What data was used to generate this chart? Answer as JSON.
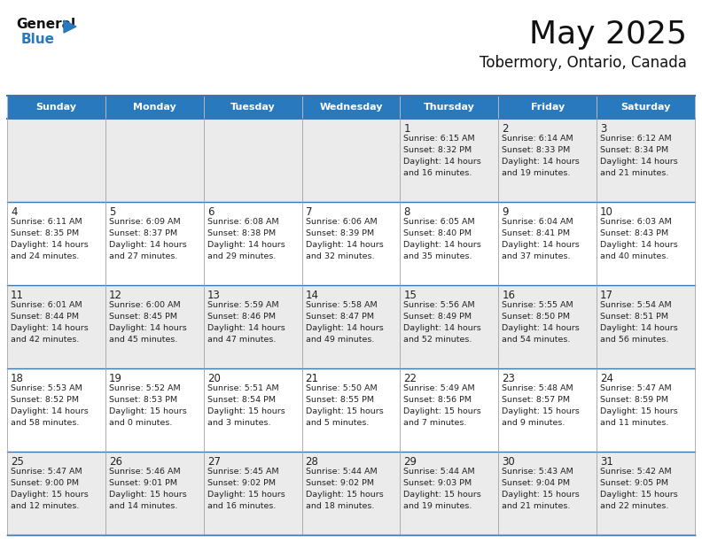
{
  "title": "May 2025",
  "subtitle": "Tobermory, Ontario, Canada",
  "header_color": "#2879BD",
  "header_text_color": "#FFFFFF",
  "text_color": "#222222",
  "border_color": "#4472C4",
  "cell_bg_white": "#FFFFFF",
  "cell_bg_gray": "#EBEBEB",
  "days_of_week": [
    "Sunday",
    "Monday",
    "Tuesday",
    "Wednesday",
    "Thursday",
    "Friday",
    "Saturday"
  ],
  "weeks": [
    [
      {
        "day": "",
        "lines": []
      },
      {
        "day": "",
        "lines": []
      },
      {
        "day": "",
        "lines": []
      },
      {
        "day": "",
        "lines": []
      },
      {
        "day": "1",
        "lines": [
          "Sunrise: 6:15 AM",
          "Sunset: 8:32 PM",
          "Daylight: 14 hours",
          "and 16 minutes."
        ]
      },
      {
        "day": "2",
        "lines": [
          "Sunrise: 6:14 AM",
          "Sunset: 8:33 PM",
          "Daylight: 14 hours",
          "and 19 minutes."
        ]
      },
      {
        "day": "3",
        "lines": [
          "Sunrise: 6:12 AM",
          "Sunset: 8:34 PM",
          "Daylight: 14 hours",
          "and 21 minutes."
        ]
      }
    ],
    [
      {
        "day": "4",
        "lines": [
          "Sunrise: 6:11 AM",
          "Sunset: 8:35 PM",
          "Daylight: 14 hours",
          "and 24 minutes."
        ]
      },
      {
        "day": "5",
        "lines": [
          "Sunrise: 6:09 AM",
          "Sunset: 8:37 PM",
          "Daylight: 14 hours",
          "and 27 minutes."
        ]
      },
      {
        "day": "6",
        "lines": [
          "Sunrise: 6:08 AM",
          "Sunset: 8:38 PM",
          "Daylight: 14 hours",
          "and 29 minutes."
        ]
      },
      {
        "day": "7",
        "lines": [
          "Sunrise: 6:06 AM",
          "Sunset: 8:39 PM",
          "Daylight: 14 hours",
          "and 32 minutes."
        ]
      },
      {
        "day": "8",
        "lines": [
          "Sunrise: 6:05 AM",
          "Sunset: 8:40 PM",
          "Daylight: 14 hours",
          "and 35 minutes."
        ]
      },
      {
        "day": "9",
        "lines": [
          "Sunrise: 6:04 AM",
          "Sunset: 8:41 PM",
          "Daylight: 14 hours",
          "and 37 minutes."
        ]
      },
      {
        "day": "10",
        "lines": [
          "Sunrise: 6:03 AM",
          "Sunset: 8:43 PM",
          "Daylight: 14 hours",
          "and 40 minutes."
        ]
      }
    ],
    [
      {
        "day": "11",
        "lines": [
          "Sunrise: 6:01 AM",
          "Sunset: 8:44 PM",
          "Daylight: 14 hours",
          "and 42 minutes."
        ]
      },
      {
        "day": "12",
        "lines": [
          "Sunrise: 6:00 AM",
          "Sunset: 8:45 PM",
          "Daylight: 14 hours",
          "and 45 minutes."
        ]
      },
      {
        "day": "13",
        "lines": [
          "Sunrise: 5:59 AM",
          "Sunset: 8:46 PM",
          "Daylight: 14 hours",
          "and 47 minutes."
        ]
      },
      {
        "day": "14",
        "lines": [
          "Sunrise: 5:58 AM",
          "Sunset: 8:47 PM",
          "Daylight: 14 hours",
          "and 49 minutes."
        ]
      },
      {
        "day": "15",
        "lines": [
          "Sunrise: 5:56 AM",
          "Sunset: 8:49 PM",
          "Daylight: 14 hours",
          "and 52 minutes."
        ]
      },
      {
        "day": "16",
        "lines": [
          "Sunrise: 5:55 AM",
          "Sunset: 8:50 PM",
          "Daylight: 14 hours",
          "and 54 minutes."
        ]
      },
      {
        "day": "17",
        "lines": [
          "Sunrise: 5:54 AM",
          "Sunset: 8:51 PM",
          "Daylight: 14 hours",
          "and 56 minutes."
        ]
      }
    ],
    [
      {
        "day": "18",
        "lines": [
          "Sunrise: 5:53 AM",
          "Sunset: 8:52 PM",
          "Daylight: 14 hours",
          "and 58 minutes."
        ]
      },
      {
        "day": "19",
        "lines": [
          "Sunrise: 5:52 AM",
          "Sunset: 8:53 PM",
          "Daylight: 15 hours",
          "and 0 minutes."
        ]
      },
      {
        "day": "20",
        "lines": [
          "Sunrise: 5:51 AM",
          "Sunset: 8:54 PM",
          "Daylight: 15 hours",
          "and 3 minutes."
        ]
      },
      {
        "day": "21",
        "lines": [
          "Sunrise: 5:50 AM",
          "Sunset: 8:55 PM",
          "Daylight: 15 hours",
          "and 5 minutes."
        ]
      },
      {
        "day": "22",
        "lines": [
          "Sunrise: 5:49 AM",
          "Sunset: 8:56 PM",
          "Daylight: 15 hours",
          "and 7 minutes."
        ]
      },
      {
        "day": "23",
        "lines": [
          "Sunrise: 5:48 AM",
          "Sunset: 8:57 PM",
          "Daylight: 15 hours",
          "and 9 minutes."
        ]
      },
      {
        "day": "24",
        "lines": [
          "Sunrise: 5:47 AM",
          "Sunset: 8:59 PM",
          "Daylight: 15 hours",
          "and 11 minutes."
        ]
      }
    ],
    [
      {
        "day": "25",
        "lines": [
          "Sunrise: 5:47 AM",
          "Sunset: 9:00 PM",
          "Daylight: 15 hours",
          "and 12 minutes."
        ]
      },
      {
        "day": "26",
        "lines": [
          "Sunrise: 5:46 AM",
          "Sunset: 9:01 PM",
          "Daylight: 15 hours",
          "and 14 minutes."
        ]
      },
      {
        "day": "27",
        "lines": [
          "Sunrise: 5:45 AM",
          "Sunset: 9:02 PM",
          "Daylight: 15 hours",
          "and 16 minutes."
        ]
      },
      {
        "day": "28",
        "lines": [
          "Sunrise: 5:44 AM",
          "Sunset: 9:02 PM",
          "Daylight: 15 hours",
          "and 18 minutes."
        ]
      },
      {
        "day": "29",
        "lines": [
          "Sunrise: 5:44 AM",
          "Sunset: 9:03 PM",
          "Daylight: 15 hours",
          "and 19 minutes."
        ]
      },
      {
        "day": "30",
        "lines": [
          "Sunrise: 5:43 AM",
          "Sunset: 9:04 PM",
          "Daylight: 15 hours",
          "and 21 minutes."
        ]
      },
      {
        "day": "31",
        "lines": [
          "Sunrise: 5:42 AM",
          "Sunset: 9:05 PM",
          "Daylight: 15 hours",
          "and 22 minutes."
        ]
      }
    ]
  ]
}
